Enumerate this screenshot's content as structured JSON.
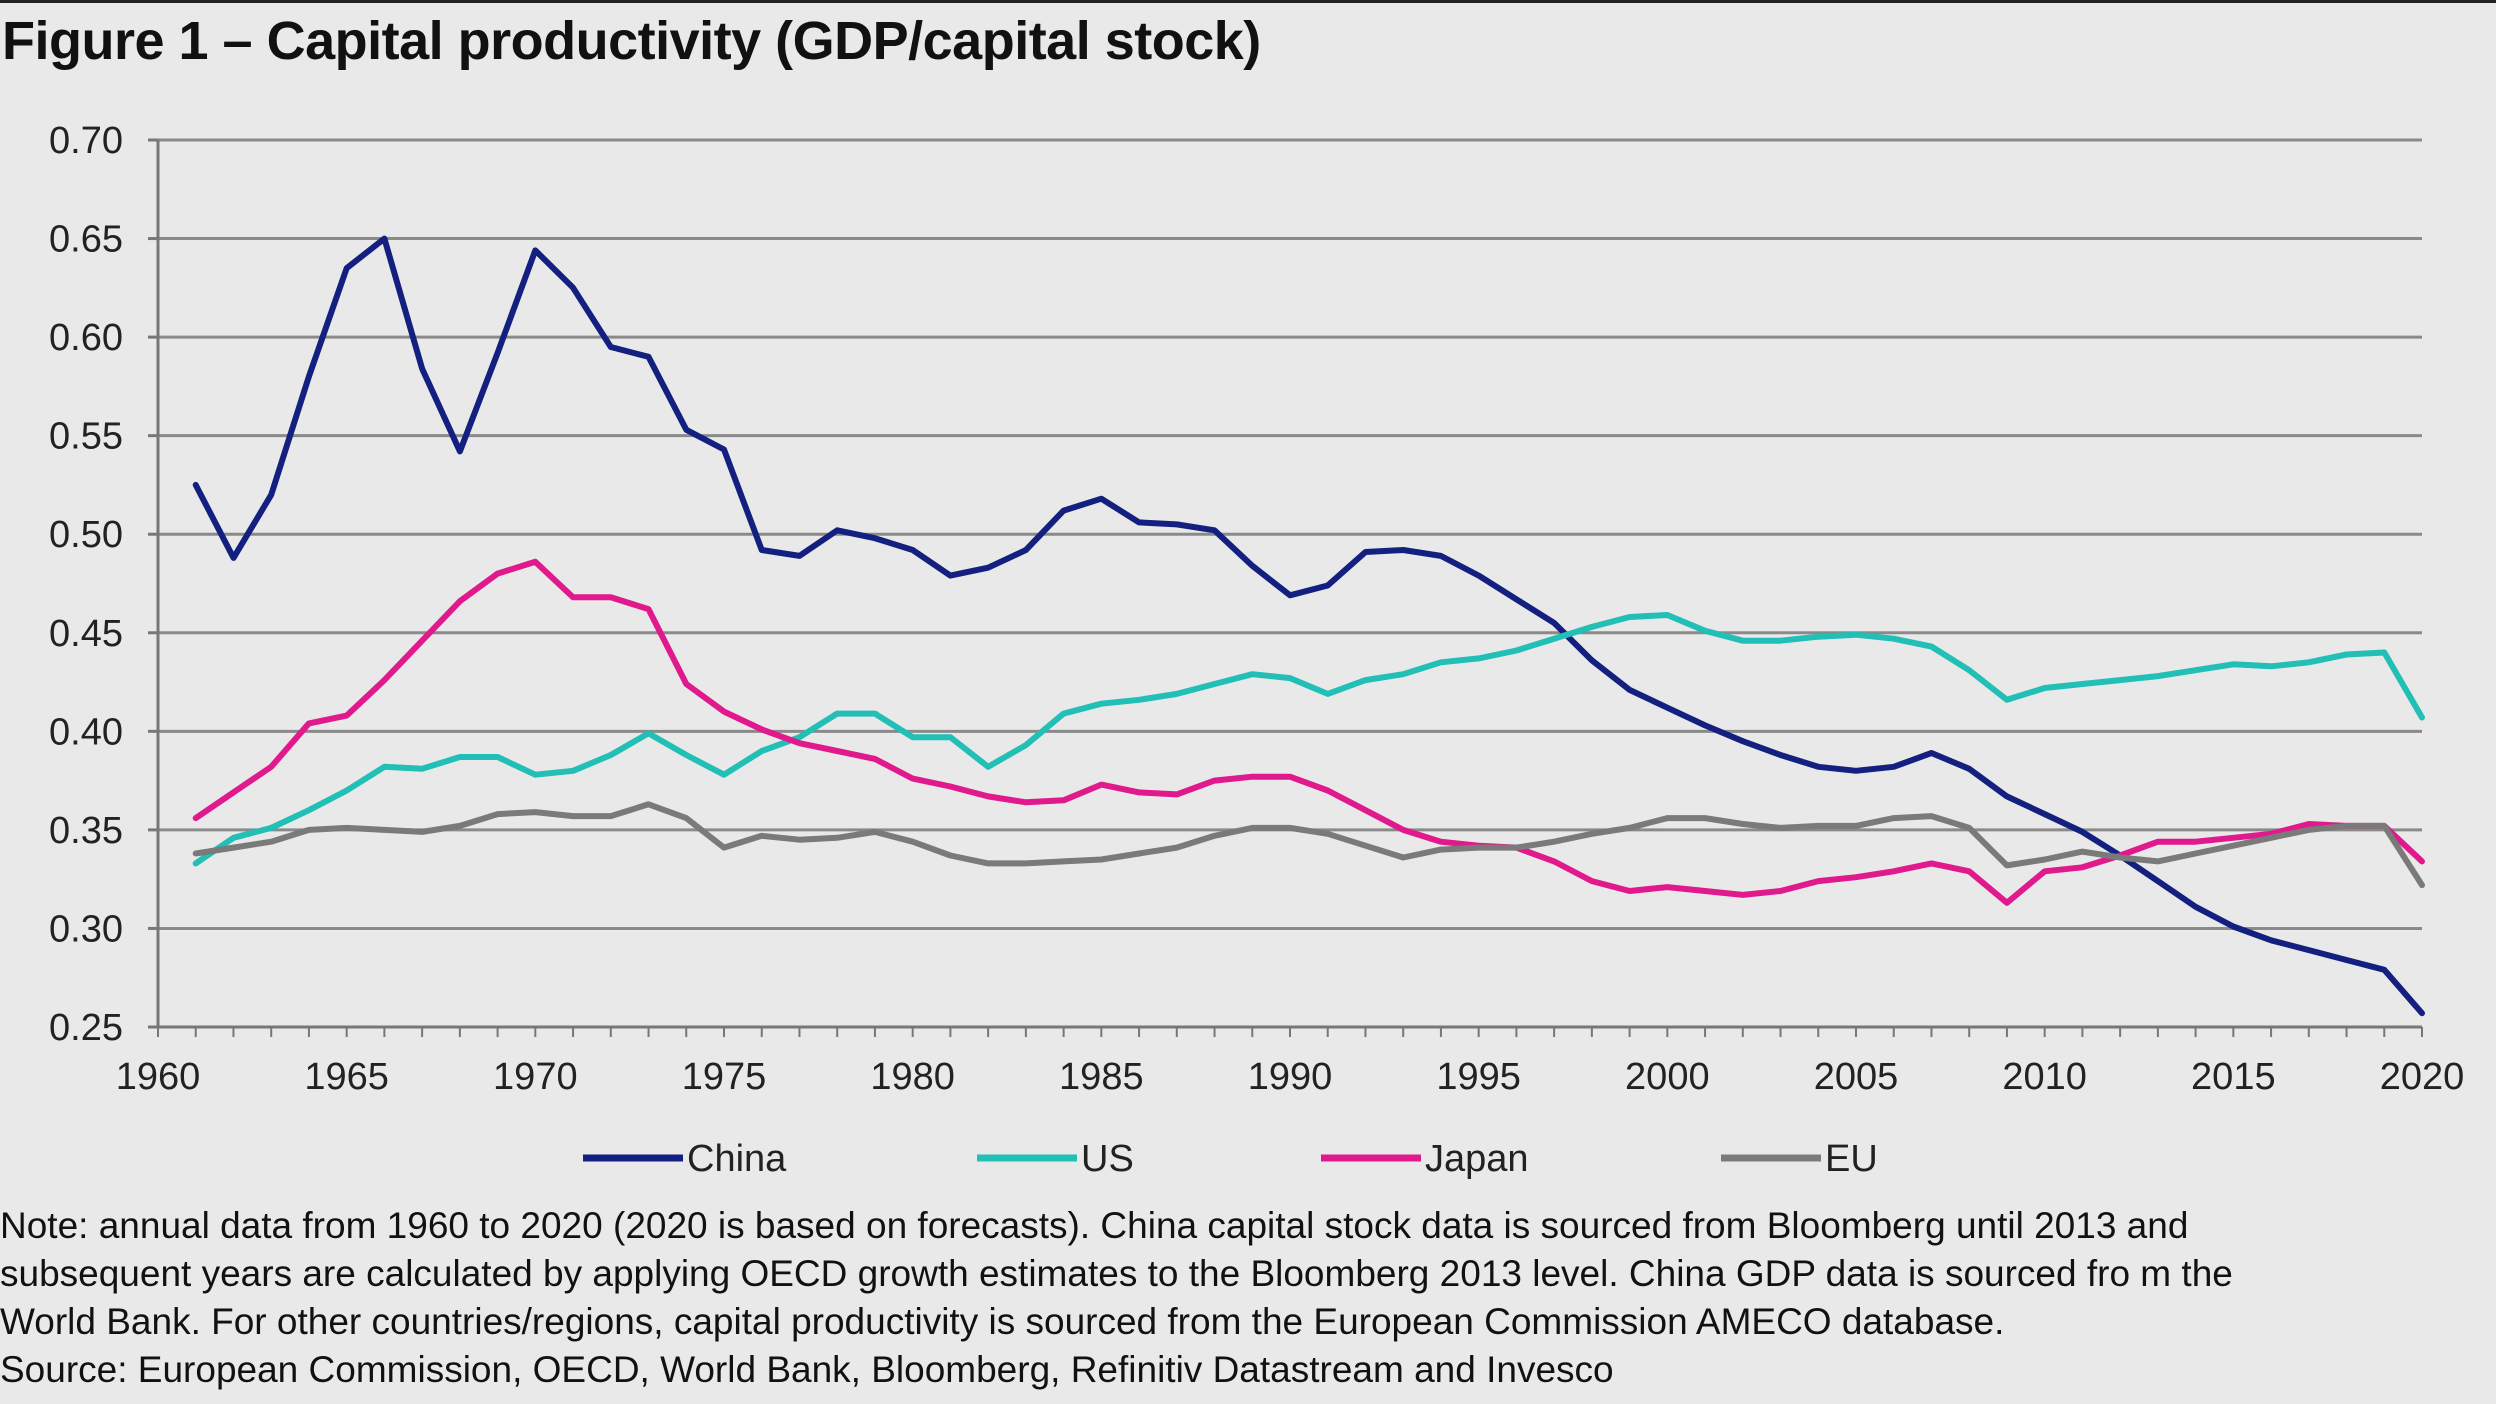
{
  "figure": {
    "title": "Figure 1 – Capital productivity (GDP/capital stock)"
  },
  "chart_data": {
    "type": "line",
    "title": "",
    "xlabel": "",
    "ylabel": "",
    "xlim": [
      1960,
      2020
    ],
    "ylim": [
      0.25,
      0.7
    ],
    "x_ticks": [
      "1960",
      "1965",
      "1970",
      "1975",
      "1980",
      "1985",
      "1990",
      "1995",
      "2000",
      "2005",
      "2010",
      "2015",
      "2020"
    ],
    "y_ticks": [
      "0.25",
      "0.30",
      "0.35",
      "0.40",
      "0.45",
      "0.50",
      "0.55",
      "0.60",
      "0.65",
      "0.70"
    ],
    "grid": true,
    "legend_position": "bottom",
    "x": [
      1961,
      1962,
      1963,
      1964,
      1965,
      1966,
      1967,
      1968,
      1969,
      1970,
      1971,
      1972,
      1973,
      1974,
      1975,
      1976,
      1977,
      1978,
      1979,
      1980,
      1981,
      1982,
      1983,
      1984,
      1985,
      1986,
      1987,
      1988,
      1989,
      1990,
      1991,
      1992,
      1993,
      1994,
      1995,
      1996,
      1997,
      1998,
      1999,
      2000,
      2001,
      2002,
      2003,
      2004,
      2005,
      2006,
      2007,
      2008,
      2009,
      2010,
      2011,
      2012,
      2013,
      2014,
      2015,
      2016,
      2017,
      2018,
      2019,
      2020
    ],
    "series": [
      {
        "name": "China",
        "color": "#14207f",
        "values": [
          0.525,
          0.488,
          0.52,
          0.58,
          0.635,
          0.65,
          0.584,
          0.542,
          0.592,
          0.644,
          0.625,
          0.595,
          0.59,
          0.553,
          0.543,
          0.492,
          0.489,
          0.502,
          0.498,
          0.492,
          0.479,
          0.483,
          0.492,
          0.512,
          0.518,
          0.506,
          0.505,
          0.502,
          0.484,
          0.469,
          0.474,
          0.491,
          0.492,
          0.489,
          0.479,
          0.467,
          0.455,
          0.436,
          0.421,
          0.412,
          0.403,
          0.395,
          0.388,
          0.382,
          0.38,
          0.382,
          0.389,
          0.381,
          0.367,
          0.358,
          0.349,
          0.337,
          0.324,
          0.311,
          0.301,
          0.294,
          0.289,
          0.284,
          0.279,
          0.257
        ]
      },
      {
        "name": "US",
        "color": "#21bfb5",
        "values": [
          0.333,
          0.346,
          0.351,
          0.36,
          0.37,
          0.382,
          0.381,
          0.387,
          0.387,
          0.378,
          0.38,
          0.388,
          0.399,
          0.388,
          0.378,
          0.39,
          0.397,
          0.409,
          0.409,
          0.397,
          0.397,
          0.382,
          0.393,
          0.409,
          0.414,
          0.416,
          0.419,
          0.424,
          0.429,
          0.427,
          0.419,
          0.426,
          0.429,
          0.435,
          0.437,
          0.441,
          0.447,
          0.453,
          0.458,
          0.459,
          0.451,
          0.446,
          0.446,
          0.448,
          0.449,
          0.447,
          0.443,
          0.431,
          0.416,
          0.422,
          0.424,
          0.426,
          0.428,
          0.431,
          0.434,
          0.433,
          0.435,
          0.439,
          0.44,
          0.407
        ]
      },
      {
        "name": "Japan",
        "color": "#e0198c",
        "values": [
          0.356,
          0.369,
          0.382,
          0.404,
          0.408,
          0.426,
          0.446,
          0.466,
          0.48,
          0.486,
          0.468,
          0.468,
          0.462,
          0.424,
          0.41,
          0.401,
          0.394,
          0.39,
          0.386,
          0.376,
          0.372,
          0.367,
          0.364,
          0.365,
          0.373,
          0.369,
          0.368,
          0.375,
          0.377,
          0.377,
          0.37,
          0.36,
          0.35,
          0.344,
          0.342,
          0.341,
          0.334,
          0.324,
          0.319,
          0.321,
          0.319,
          0.317,
          0.319,
          0.324,
          0.326,
          0.329,
          0.333,
          0.329,
          0.313,
          0.329,
          0.331,
          0.337,
          0.344,
          0.344,
          0.346,
          0.348,
          0.353,
          0.352,
          0.352,
          0.334
        ]
      },
      {
        "name": "EU",
        "color": "#7a7a7a",
        "values": [
          0.338,
          0.341,
          0.344,
          0.35,
          0.351,
          0.35,
          0.349,
          0.352,
          0.358,
          0.359,
          0.357,
          0.357,
          0.363,
          0.356,
          0.341,
          0.347,
          0.345,
          0.346,
          0.349,
          0.344,
          0.337,
          0.333,
          0.333,
          0.334,
          0.335,
          0.338,
          0.341,
          0.347,
          0.351,
          0.351,
          0.348,
          0.342,
          0.336,
          0.34,
          0.341,
          0.341,
          0.344,
          0.348,
          0.351,
          0.356,
          0.356,
          0.353,
          0.351,
          0.352,
          0.352,
          0.356,
          0.357,
          0.351,
          0.332,
          0.335,
          0.339,
          0.336,
          0.334,
          0.338,
          0.342,
          0.346,
          0.35,
          0.352,
          0.352,
          0.322
        ]
      }
    ]
  },
  "notes": {
    "line1": "Note: annual data from 1960 to 2020 (2020 is based on forecasts). China capital stock data is sourced from Bloomberg until 2013 and",
    "line2": "subsequent years are calculated by applying OECD growth estimates to the Bloomberg 2013 level. China GDP data is sourced fro m the",
    "line3": "World Bank. For other countries/regions, capital productivity is sourced from the European Commission AMECO database.",
    "source": "Source: European Commission, OECD, World Bank, Bloomberg, Refinitiv Datastream and Invesco"
  }
}
